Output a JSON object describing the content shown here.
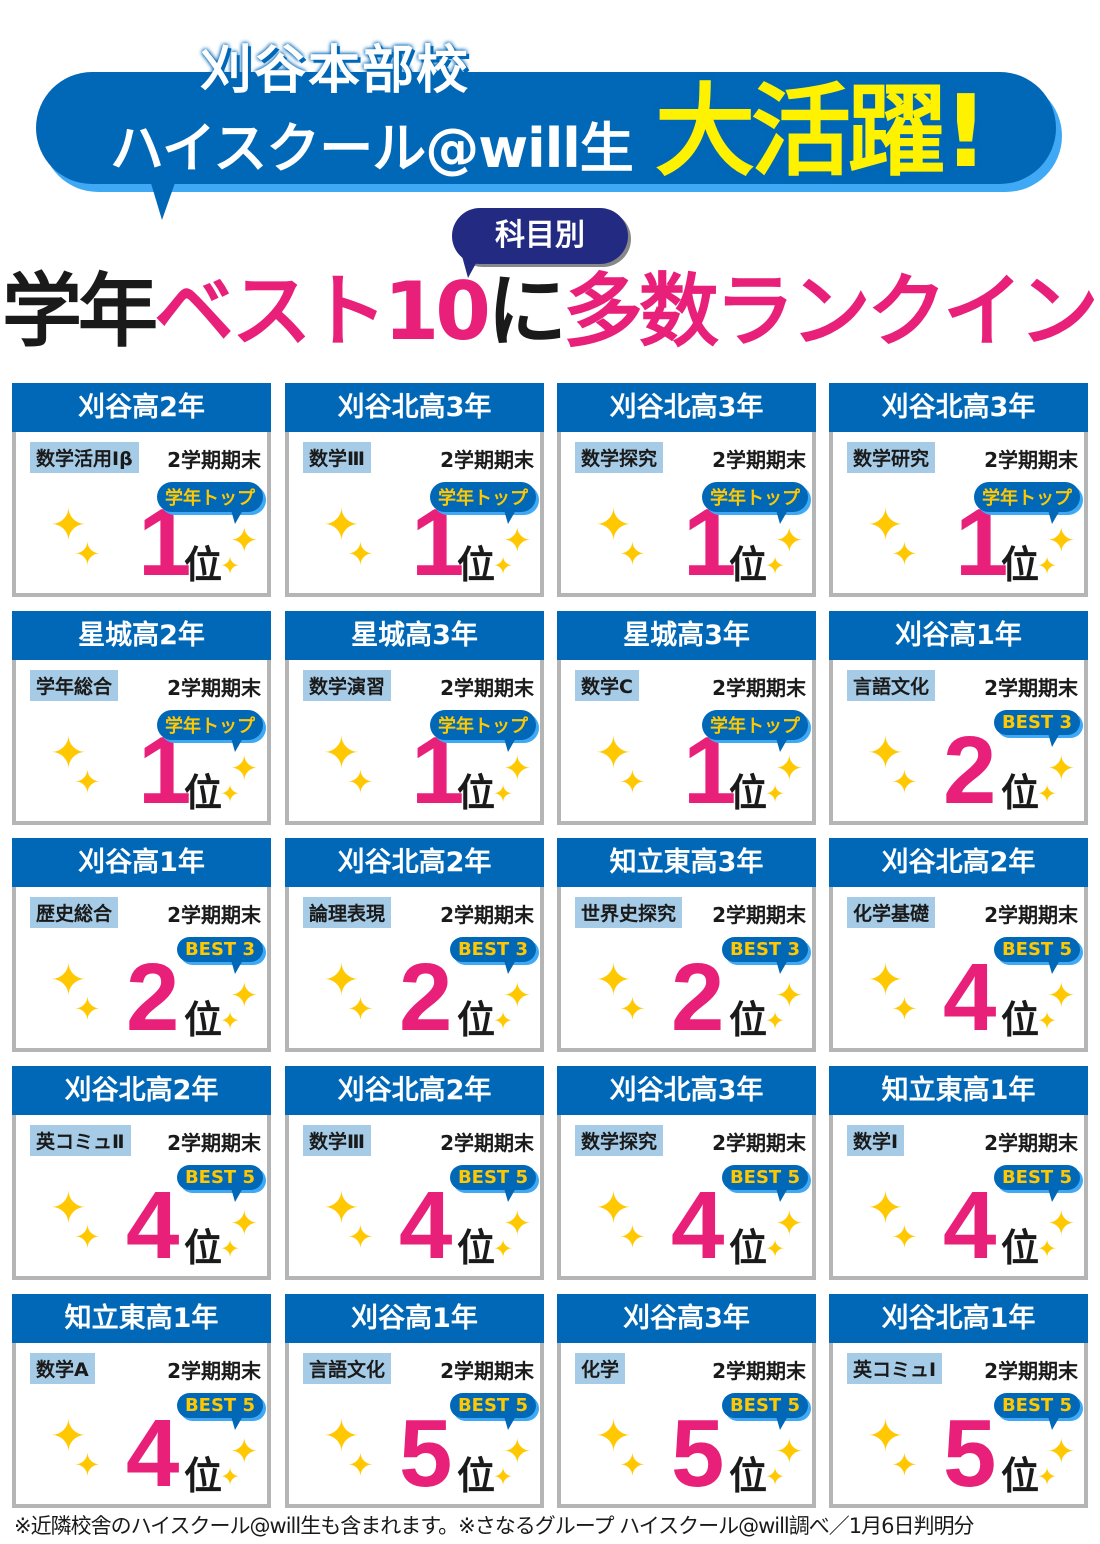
{
  "header": {
    "line1": "刈谷本部校",
    "line2": "ハイスクール@will生",
    "exclaim": "大活躍!",
    "tag": "科目別",
    "headline": {
      "a": "学年",
      "b": "ベスト10",
      "c": "に",
      "d": "多数ランクイン",
      "e": "!"
    }
  },
  "colors": {
    "blue": "#0068b7",
    "pink": "#e8207a",
    "yellow": "#ffc800",
    "navy": "#232a82"
  },
  "rank_suffix": "位",
  "cards": [
    {
      "school": "刈谷高2年",
      "subject": "数学活用Ⅰβ",
      "term": "2学期期末",
      "badge": "学年トップ",
      "rank": "1"
    },
    {
      "school": "刈谷北高3年",
      "subject": "数学Ⅲ",
      "term": "2学期期末",
      "badge": "学年トップ",
      "rank": "1"
    },
    {
      "school": "刈谷北高3年",
      "subject": "数学探究",
      "term": "2学期期末",
      "badge": "学年トップ",
      "rank": "1"
    },
    {
      "school": "刈谷北高3年",
      "subject": "数学研究",
      "term": "2学期期末",
      "badge": "学年トップ",
      "rank": "1"
    },
    {
      "school": "星城高2年",
      "subject": "学年総合",
      "term": "2学期期末",
      "badge": "学年トップ",
      "rank": "1"
    },
    {
      "school": "星城高3年",
      "subject": "数学演習",
      "term": "2学期期末",
      "badge": "学年トップ",
      "rank": "1"
    },
    {
      "school": "星城高3年",
      "subject": "数学C",
      "term": "2学期期末",
      "badge": "学年トップ",
      "rank": "1"
    },
    {
      "school": "刈谷高1年",
      "subject": "言語文化",
      "term": "2学期期末",
      "badge": "BEST 3",
      "rank": "2"
    },
    {
      "school": "刈谷高1年",
      "subject": "歴史総合",
      "term": "2学期期末",
      "badge": "BEST 3",
      "rank": "2"
    },
    {
      "school": "刈谷北高2年",
      "subject": "論理表現",
      "term": "2学期期末",
      "badge": "BEST 3",
      "rank": "2"
    },
    {
      "school": "知立東高3年",
      "subject": "世界史探究",
      "term": "2学期期末",
      "badge": "BEST 3",
      "rank": "2"
    },
    {
      "school": "刈谷北高2年",
      "subject": "化学基礎",
      "term": "2学期期末",
      "badge": "BEST 5",
      "rank": "4"
    },
    {
      "school": "刈谷北高2年",
      "subject": "英コミュⅡ",
      "term": "2学期期末",
      "badge": "BEST 5",
      "rank": "4"
    },
    {
      "school": "刈谷北高2年",
      "subject": "数学Ⅲ",
      "term": "2学期期末",
      "badge": "BEST 5",
      "rank": "4"
    },
    {
      "school": "刈谷北高3年",
      "subject": "数学探究",
      "term": "2学期期末",
      "badge": "BEST 5",
      "rank": "4"
    },
    {
      "school": "知立東高1年",
      "subject": "数学Ⅰ",
      "term": "2学期期末",
      "badge": "BEST 5",
      "rank": "4"
    },
    {
      "school": "知立東高1年",
      "subject": "数学A",
      "term": "2学期期末",
      "badge": "BEST 5",
      "rank": "4"
    },
    {
      "school": "刈谷高1年",
      "subject": "言語文化",
      "term": "2学期期末",
      "badge": "BEST 5",
      "rank": "5"
    },
    {
      "school": "刈谷高3年",
      "subject": "化学",
      "term": "2学期期末",
      "badge": "BEST 5",
      "rank": "5"
    },
    {
      "school": "刈谷北高1年",
      "subject": "英コミュⅠ",
      "term": "2学期期末",
      "badge": "BEST 5",
      "rank": "5"
    }
  ],
  "footer": "※近隣校舎のハイスクール@will生も含まれます。※さなるグループ ハイスクール@will調べ／1月6日判明分"
}
